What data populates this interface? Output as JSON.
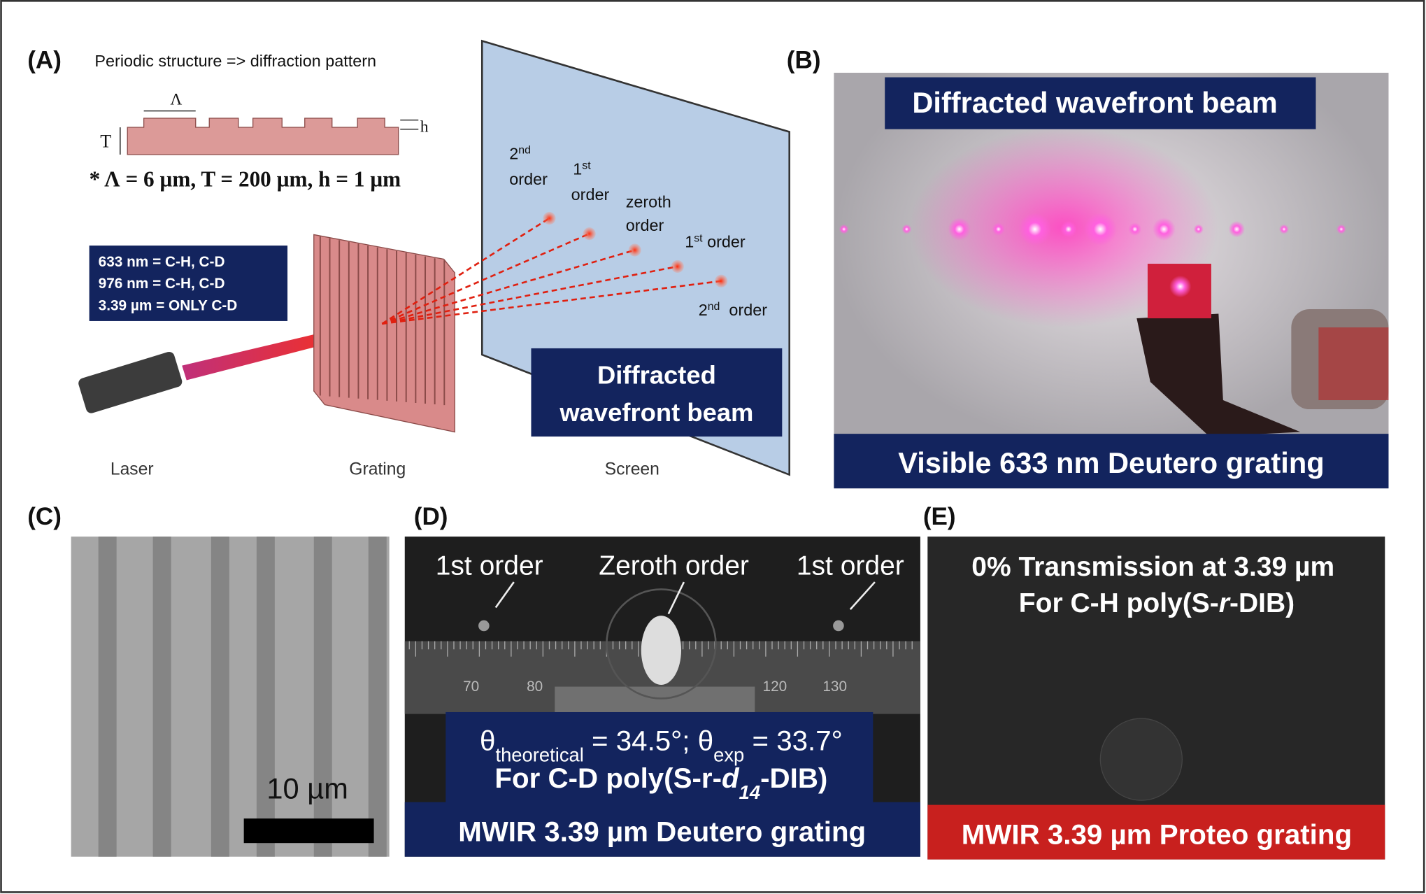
{
  "panels": {
    "A": {
      "label": "(A)",
      "caption": "Periodic structure => diffraction pattern",
      "period_symbol": "Λ",
      "thickness_symbol": "T",
      "height_symbol": "h",
      "params": "* Λ = 6 µm, T = 200 µm, h = 1 µm",
      "legend": [
        "633 nm = C-H, C-D",
        "976 nm = C-H, C-D",
        "3.39 µm = ONLY C-D"
      ],
      "order_labels": [
        [
          {
            "t": "2"
          },
          {
            "t": "nd",
            "s": "sup"
          }
        ],
        [
          {
            "t": "order"
          }
        ],
        [
          {
            "t": "1"
          },
          {
            "t": "st",
            "s": "sup"
          }
        ],
        [
          {
            "t": "order"
          }
        ],
        [
          {
            "t": "zeroth"
          }
        ],
        [
          {
            "t": "order"
          }
        ],
        [
          {
            "t": "1"
          },
          {
            "t": "st",
            "s": "sup"
          },
          {
            "t": " order"
          }
        ],
        [
          {
            "t": "2"
          },
          {
            "t": "nd",
            "s": "sup"
          },
          {
            "t": "  order"
          }
        ]
      ],
      "screen_label": [
        "Diffracted",
        "wavefront beam"
      ],
      "components": [
        "Laser",
        "Grating",
        "Screen"
      ]
    },
    "B": {
      "label": "(B)",
      "top": "Diffracted wavefront beam",
      "bottom": "Visible 633 nm Deutero grating"
    },
    "C": {
      "label": "(C)",
      "scale": "10 µm"
    },
    "D": {
      "label": "(D)",
      "orders": [
        "1st order",
        "Zeroth order",
        "1st order"
      ],
      "ruler": [
        "70",
        "80",
        "120",
        "130"
      ],
      "theta": [
        {
          "t": "θ"
        },
        {
          "t": "theoretical",
          "s": "sub"
        },
        {
          "t": " = 34.5°; θ"
        },
        {
          "t": "exp",
          "s": "sub"
        },
        {
          "t": " = 33.7°"
        }
      ],
      "sample": [
        {
          "t": "For C-D poly(S-r-"
        },
        {
          "t": "d",
          "s": "italic"
        },
        {
          "t": "14",
          "s": "sub-italic"
        },
        {
          "t": "-DIB)"
        }
      ],
      "bottom": "MWIR 3.39 µm Deutero grating"
    },
    "E": {
      "label": "(E)",
      "line1": [
        {
          "t": "0% Transmission at 3.39 µm"
        }
      ],
      "line2": [
        {
          "t": "For C-H poly(S-"
        },
        {
          "t": "r",
          "s": "italic"
        },
        {
          "t": "-DIB)"
        }
      ],
      "bottom": "MWIR 3.39 µm Proteo grating"
    }
  }
}
